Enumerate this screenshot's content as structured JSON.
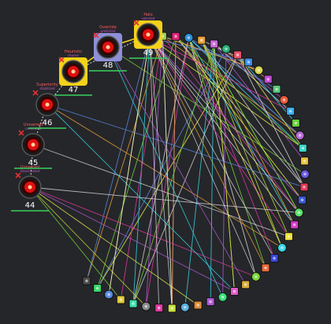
{
  "colors": {
    "background": "#25262a",
    "selected_border": "#f4d21a",
    "active_border": "#8f8fd8",
    "neutral_border": "#3a3b40",
    "eye_red": "#e01010",
    "eliminated_x": "#e03030",
    "label_red": "#ff5a5a",
    "subtext_green": "#37c85a"
  },
  "players": [
    {
      "id": "p44",
      "name": "Unnamed",
      "subtitle": "Deactivated",
      "score": "44",
      "state": "neutral",
      "eliminated": true
    },
    {
      "id": "p45",
      "name": "Unnamed",
      "subtitle": "connected",
      "score": "45",
      "state": "neutral",
      "eliminated": true
    },
    {
      "id": "p46",
      "name": "Superiority",
      "subtitle": "stabilized",
      "score": "46",
      "state": "neutral",
      "eliminated": true
    },
    {
      "id": "p47",
      "name": "Heuristic",
      "subtitle": "chosen",
      "score": "47",
      "state": "selected",
      "eliminated": true
    },
    {
      "id": "p48",
      "name": "Override",
      "subtitle": "predicted",
      "score": "48",
      "state": "active",
      "eliminated": true
    },
    {
      "id": "p49",
      "name": "Halo",
      "subtitle": "selected",
      "score": "49",
      "state": "selected",
      "eliminated": true
    }
  ],
  "ring_nodes": [
    {
      "icon": "dice-icon",
      "color": "#7c6fd6"
    },
    {
      "icon": "cards-icon",
      "color": "#9ad15a"
    },
    {
      "icon": "gem-icon",
      "color": "#e0227a"
    },
    {
      "icon": "shield-icon",
      "color": "#2a8fd6"
    },
    {
      "icon": "bolt-icon",
      "color": "#e8a33a"
    },
    {
      "icon": "gear-icon",
      "color": "#c86ad8"
    },
    {
      "icon": "lock-icon",
      "color": "#27b07a"
    },
    {
      "icon": "star-icon",
      "color": "#e8516a"
    },
    {
      "icon": "book-icon",
      "color": "#3a8ff0"
    },
    {
      "icon": "flag-icon",
      "color": "#d6d650"
    },
    {
      "icon": "heart-icon",
      "color": "#c44ad6"
    },
    {
      "icon": "leaf-icon",
      "color": "#5ac87a"
    },
    {
      "icon": "fire-icon",
      "color": "#e85a3a"
    },
    {
      "icon": "globe-icon",
      "color": "#3ab0f0"
    },
    {
      "icon": "cube-icon",
      "color": "#67d13a"
    },
    {
      "icon": "crown-icon",
      "color": "#b86ad8"
    },
    {
      "icon": "drop-icon",
      "color": "#3ad6c8"
    },
    {
      "icon": "tree-icon",
      "color": "#e8c23a"
    },
    {
      "icon": "moon-icon",
      "color": "#6a5ae0"
    },
    {
      "icon": "key-icon",
      "color": "#e03a5a"
    },
    {
      "icon": "bell-icon",
      "color": "#3a5ad6"
    },
    {
      "icon": "anchor-icon",
      "color": "#5ae06a"
    },
    {
      "icon": "eye-icon",
      "color": "#d63ac8"
    },
    {
      "icon": "sun-icon",
      "color": "#f0e03a"
    },
    {
      "icon": "rocket-icon",
      "color": "#3ad6e8"
    },
    {
      "icon": "music-icon",
      "color": "#3a46e0"
    },
    {
      "icon": "coin-icon",
      "color": "#e86a3a"
    },
    {
      "icon": "mask-icon",
      "color": "#7ad63a"
    },
    {
      "icon": "skull-icon",
      "color": "#d6b03a"
    },
    {
      "icon": "potion-icon",
      "color": "#e05ac8"
    },
    {
      "icon": "bow-icon",
      "color": "#3ae07a"
    },
    {
      "icon": "sword-icon",
      "color": "#b05ad6"
    },
    {
      "icon": "map-icon",
      "color": "#e08a3a"
    },
    {
      "icon": "compass-icon",
      "color": "#5ab0e0"
    },
    {
      "icon": "hammer-icon",
      "color": "#c8e03a"
    },
    {
      "icon": "orb-icon",
      "color": "#e03aa0"
    },
    {
      "icon": "scroll-icon",
      "color": "#8a8a8a"
    },
    {
      "icon": "ring-icon",
      "color": "#3ae0b0"
    },
    {
      "icon": "flask-icon",
      "color": "#e0c83a"
    },
    {
      "icon": "feather-icon",
      "color": "#5a8ae0"
    },
    {
      "icon": "clover-icon",
      "color": "#3ad66a"
    },
    {
      "icon": "pawn-icon",
      "color": "#4a4a4a"
    }
  ]
}
